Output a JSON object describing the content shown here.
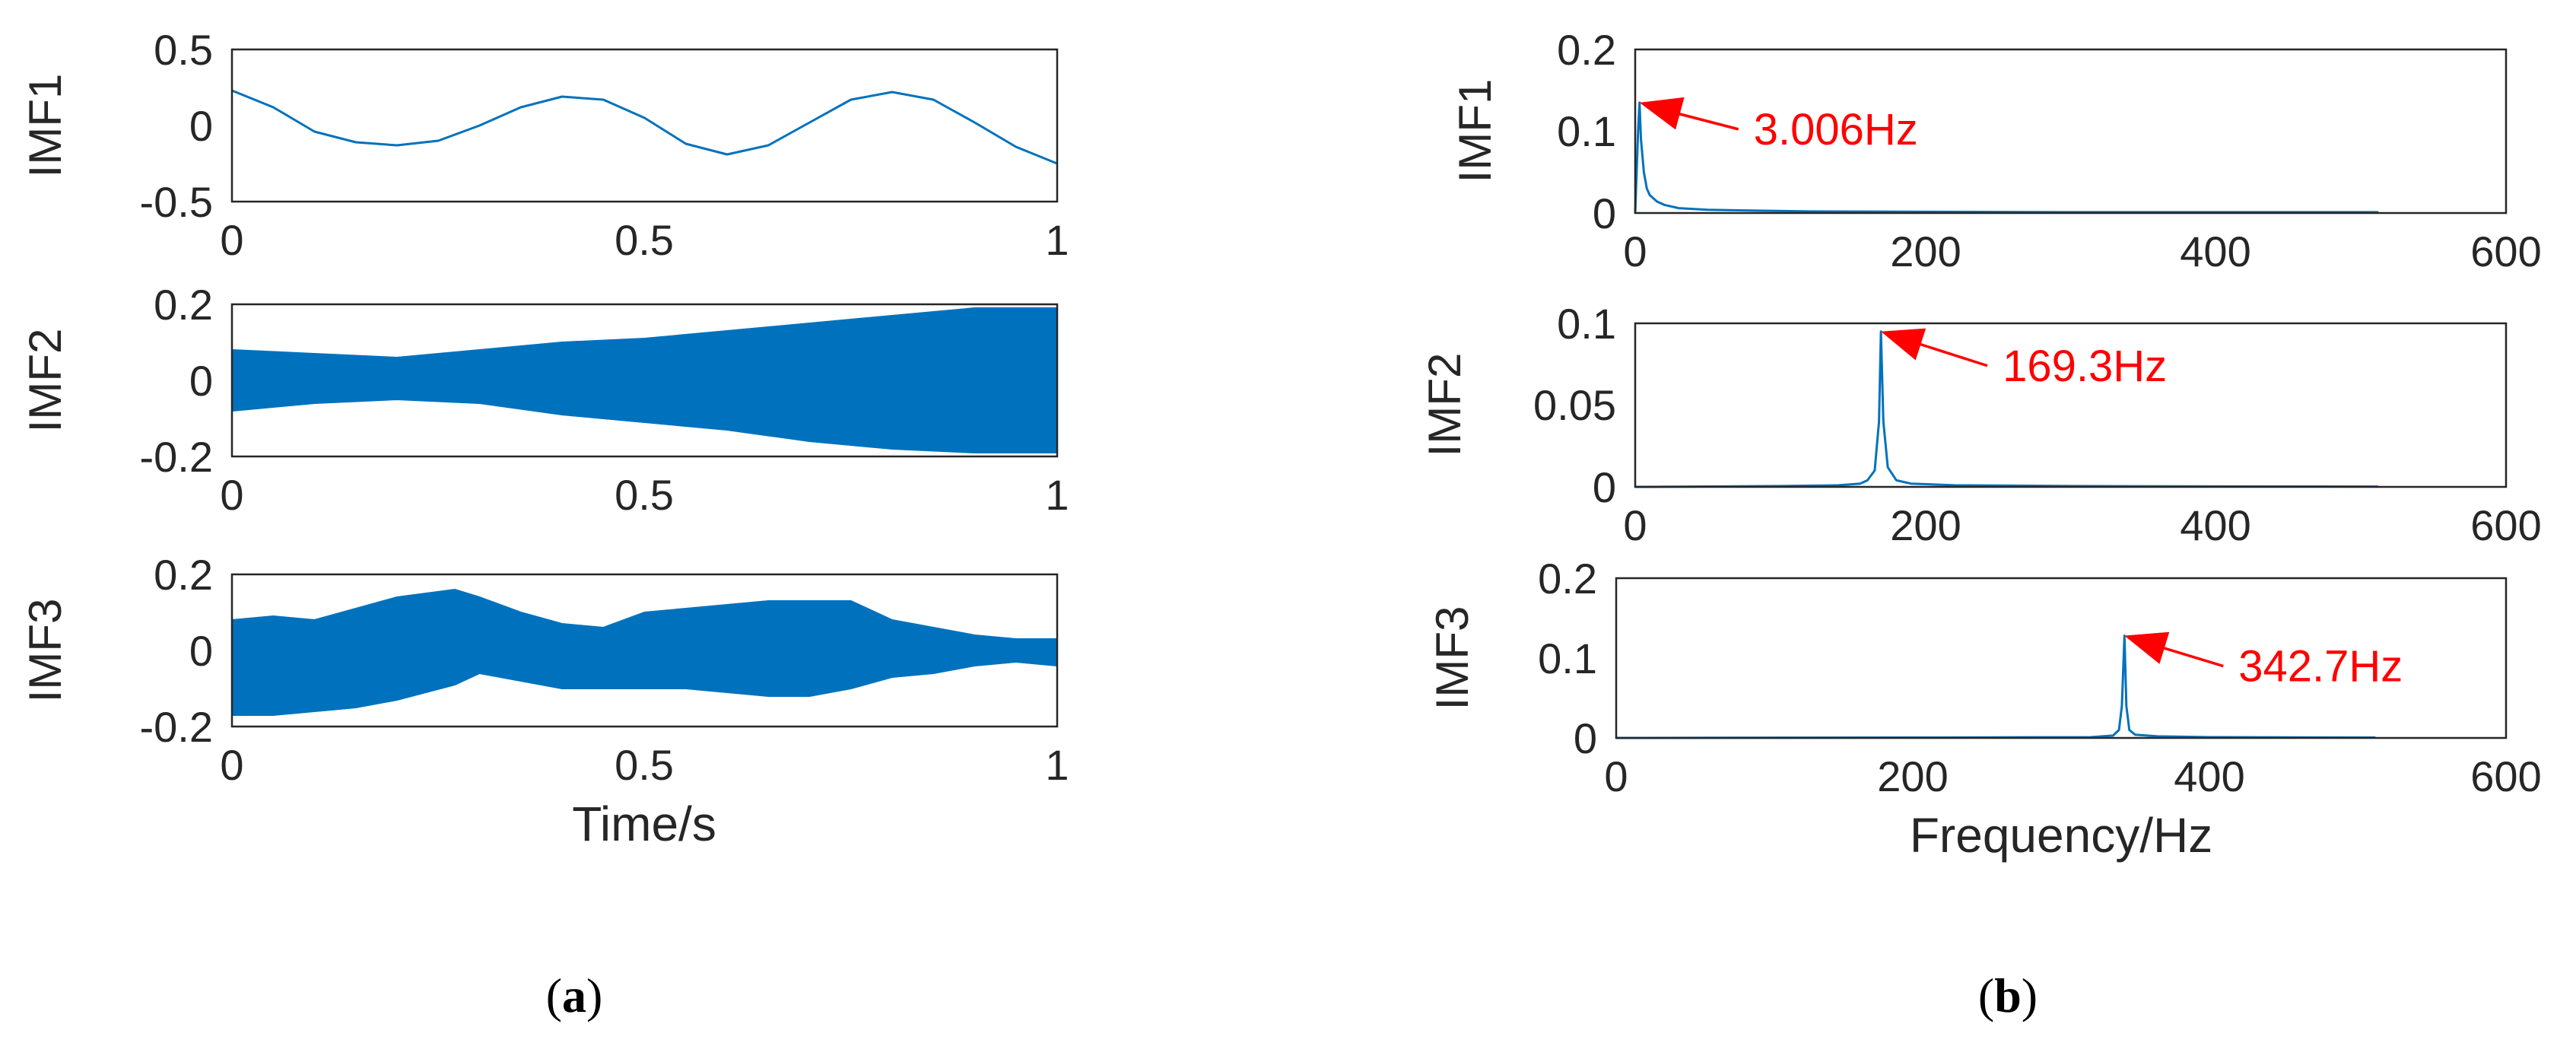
{
  "colors": {
    "signal": "#0072BD",
    "axis": "#262626",
    "annotation": "#FF0000"
  },
  "panels": {
    "a": {
      "label_open": "(",
      "label_letter": "a",
      "label_close": ")"
    },
    "b": {
      "label_open": "(",
      "label_letter": "b",
      "label_close": ")"
    }
  },
  "chart_data": [
    {
      "panel": "a",
      "type": "line",
      "ylabel": "IMF1",
      "xlabel": "",
      "xlim": [
        0,
        1
      ],
      "ylim": [
        -0.5,
        0.5
      ],
      "xticks": [
        "0",
        "0.5",
        "1"
      ],
      "yticks": [
        "0.5",
        "0",
        "-0.5"
      ],
      "series": [
        {
          "x": [
            0,
            0.05,
            0.1,
            0.15,
            0.2,
            0.25,
            0.3,
            0.35,
            0.4,
            0.45,
            0.5,
            0.55,
            0.6,
            0.65,
            0.7,
            0.75,
            0.8,
            0.85,
            0.9,
            0.95,
            1.0
          ],
          "y": [
            0.23,
            0.12,
            -0.04,
            -0.11,
            -0.13,
            -0.1,
            0.0,
            0.12,
            0.19,
            0.17,
            0.05,
            -0.12,
            -0.19,
            -0.13,
            0.02,
            0.17,
            0.22,
            0.17,
            0.02,
            -0.14,
            -0.25
          ]
        }
      ]
    },
    {
      "panel": "a",
      "type": "area",
      "ylabel": "IMF2",
      "xlabel": "",
      "xlim": [
        0,
        1
      ],
      "ylim": [
        -0.2,
        0.2
      ],
      "xticks": [
        "0",
        "0.5",
        "1"
      ],
      "yticks": [
        "0.2",
        "0",
        "-0.2"
      ],
      "envelope": {
        "x": [
          0,
          0.1,
          0.2,
          0.3,
          0.4,
          0.5,
          0.6,
          0.7,
          0.8,
          0.9,
          1.0
        ],
        "upper": [
          0.08,
          0.07,
          0.06,
          0.08,
          0.1,
          0.11,
          0.13,
          0.15,
          0.17,
          0.19,
          0.19
        ],
        "lower": [
          -0.08,
          -0.06,
          -0.05,
          -0.06,
          -0.09,
          -0.11,
          -0.13,
          -0.16,
          -0.18,
          -0.19,
          -0.19
        ]
      }
    },
    {
      "panel": "a",
      "type": "area",
      "ylabel": "IMF3",
      "xlabel": "Time/s",
      "xlim": [
        0,
        1
      ],
      "ylim": [
        -0.2,
        0.2
      ],
      "xticks": [
        "0",
        "0.5",
        "1"
      ],
      "yticks": [
        "0.2",
        "0",
        "-0.2"
      ],
      "envelope": {
        "x": [
          0,
          0.05,
          0.1,
          0.15,
          0.2,
          0.27,
          0.3,
          0.35,
          0.4,
          0.45,
          0.5,
          0.55,
          0.6,
          0.65,
          0.7,
          0.75,
          0.8,
          0.85,
          0.9,
          0.95,
          1.0
        ],
        "upper": [
          0.08,
          0.09,
          0.08,
          0.11,
          0.14,
          0.16,
          0.14,
          0.1,
          0.07,
          0.06,
          0.1,
          0.11,
          0.12,
          0.13,
          0.13,
          0.13,
          0.08,
          0.06,
          0.04,
          0.03,
          0.03
        ],
        "lower": [
          -0.17,
          -0.17,
          -0.16,
          -0.15,
          -0.13,
          -0.09,
          -0.06,
          -0.08,
          -0.1,
          -0.1,
          -0.1,
          -0.1,
          -0.11,
          -0.12,
          -0.12,
          -0.1,
          -0.07,
          -0.06,
          -0.04,
          -0.03,
          -0.04
        ]
      }
    },
    {
      "panel": "b",
      "type": "line",
      "ylabel": "IMF1",
      "xlabel": "",
      "xlim": [
        0,
        600
      ],
      "ylim": [
        0,
        0.2
      ],
      "xticks": [
        "0",
        "200",
        "400",
        "600"
      ],
      "yticks": [
        "0.2",
        "0.1",
        "0"
      ],
      "series": [
        {
          "x": [
            0,
            1,
            2,
            3,
            4,
            6,
            8,
            10,
            15,
            20,
            30,
            50,
            80,
            120,
            200,
            300,
            400,
            512
          ],
          "y": [
            0.0,
            0.05,
            0.1,
            0.135,
            0.09,
            0.05,
            0.03,
            0.022,
            0.014,
            0.01,
            0.006,
            0.004,
            0.003,
            0.002,
            0.0015,
            0.001,
            0.001,
            0.001
          ]
        }
      ],
      "annotations": [
        {
          "text": "3.006Hz",
          "x": 3.006,
          "y": 0.135
        }
      ]
    },
    {
      "panel": "b",
      "type": "line",
      "ylabel": "IMF2",
      "xlabel": "",
      "xlim": [
        0,
        600
      ],
      "ylim": [
        0,
        0.1
      ],
      "xticks": [
        "0",
        "200",
        "400",
        "600"
      ],
      "yticks": [
        "0.1",
        "0.05",
        "0"
      ],
      "series": [
        {
          "x": [
            0,
            100,
            140,
            155,
            160,
            165,
            168,
            169.3,
            171,
            174,
            180,
            190,
            220,
            300,
            400,
            512
          ],
          "y": [
            0.0,
            0.0005,
            0.001,
            0.002,
            0.004,
            0.01,
            0.04,
            0.095,
            0.04,
            0.012,
            0.004,
            0.002,
            0.001,
            0.0005,
            0.0003,
            0.0002
          ]
        }
      ],
      "annotations": [
        {
          "text": "169.3Hz",
          "x": 169.3,
          "y": 0.095
        }
      ]
    },
    {
      "panel": "b",
      "type": "line",
      "ylabel": "IMF3",
      "xlabel": "Frequency/Hz",
      "xlim": [
        0,
        600
      ],
      "ylim": [
        0,
        0.2
      ],
      "xticks": [
        "0",
        "200",
        "400",
        "600"
      ],
      "yticks": [
        "0.2",
        "0.1",
        "0"
      ],
      "series": [
        {
          "x": [
            0,
            200,
            320,
            335,
            339,
            341,
            342.7,
            344,
            346,
            350,
            365,
            400,
            512
          ],
          "y": [
            0.0,
            0.0005,
            0.001,
            0.003,
            0.01,
            0.04,
            0.128,
            0.04,
            0.01,
            0.004,
            0.002,
            0.001,
            0.0005
          ]
        }
      ],
      "annotations": [
        {
          "text": "342.7Hz",
          "x": 342.7,
          "y": 0.128
        }
      ]
    }
  ]
}
